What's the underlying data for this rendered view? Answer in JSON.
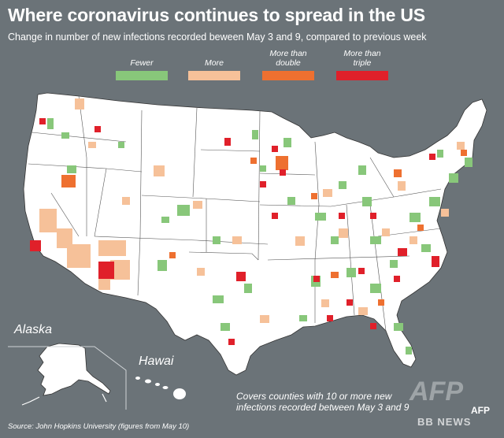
{
  "title": "Where coronavirus continues to spread in the US",
  "subtitle": "Change in number of new infections recorded beween May 3 and 9, compared to previous week",
  "legend": [
    {
      "label": "Fewer",
      "color": "#88c77a"
    },
    {
      "label": "More",
      "color": "#f6c199"
    },
    {
      "label": "More than double",
      "color": "#ee7030"
    },
    {
      "label": "More than triple",
      "color": "#e0202a"
    }
  ],
  "labels": {
    "alaska": "Alaska",
    "hawai": "Hawai"
  },
  "note": "Covers counties with 10 or more new infections recorded between May 3 and 9",
  "source": "Source: John Hopkins University (figures from May 10)",
  "watermark": "AFP",
  "logo": "AFP",
  "bbnews": "BB NEWS",
  "colors": {
    "background": "#6b7378",
    "land": "#ffffff",
    "borders": "#444444"
  }
}
